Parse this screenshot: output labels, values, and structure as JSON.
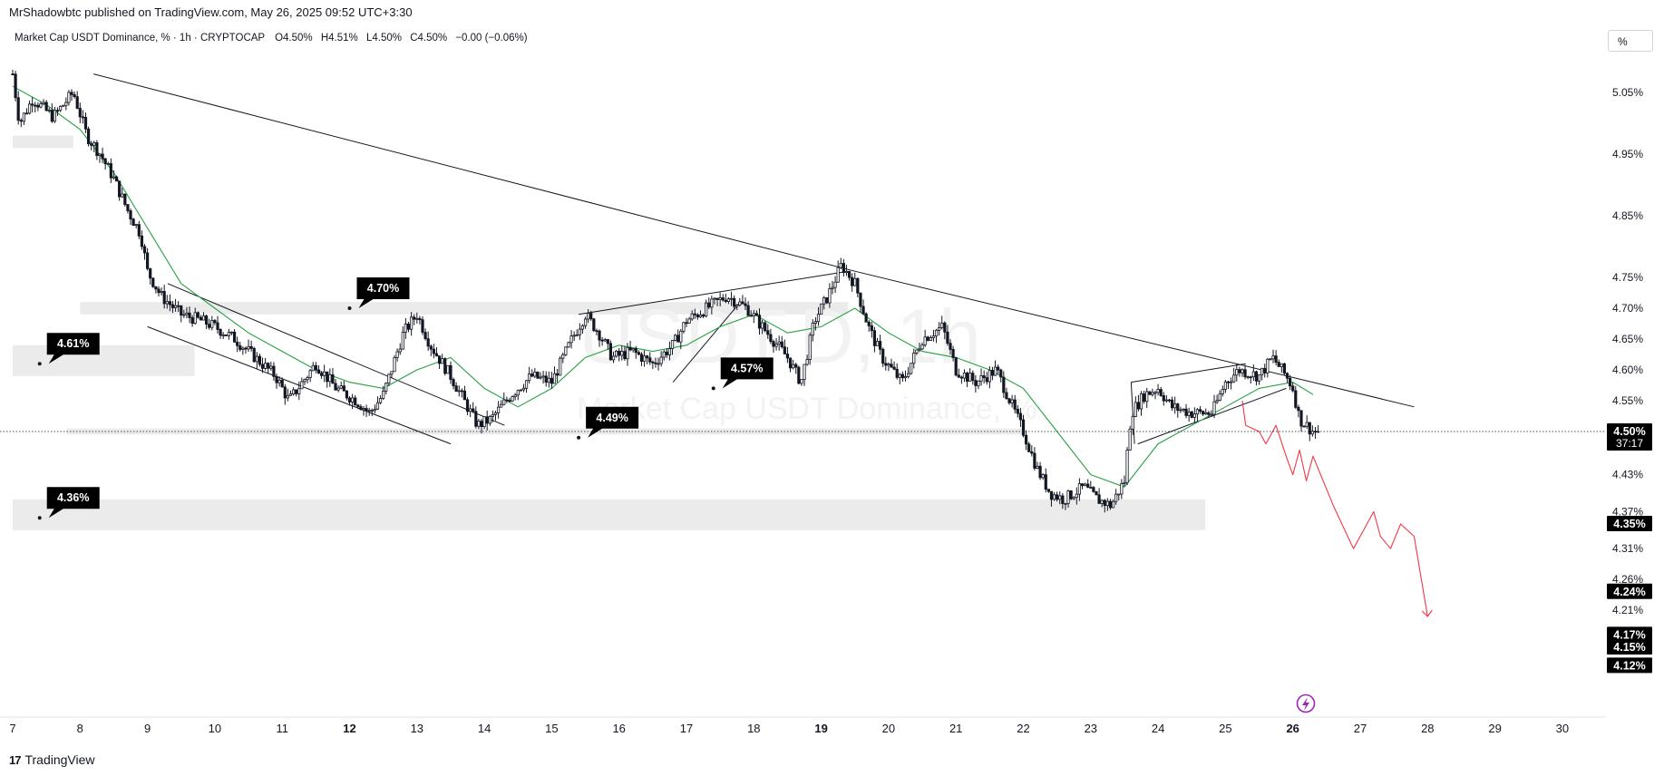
{
  "header": {
    "published": "MrShadowbtc published on TradingView.com, May 26, 2025 09:52 UTC+3:30",
    "symbol_line": "Market Cap USDT Dominance, % · 1h · CRYPTOCAP",
    "ohlc": {
      "o": "O4.50%",
      "h": "H4.51%",
      "l": "L4.50%",
      "c": "C4.50%",
      "chg": "−0.00 (−0.06%)"
    }
  },
  "watermark": {
    "symbol": "USDT.D, 1h",
    "name": "Market Cap USDT Dominance, %"
  },
  "scale_mode": "%",
  "footer": {
    "brand": "TradingView",
    "logo_glyph": "17"
  },
  "colors": {
    "candle": "#131722",
    "ma": "#26a041",
    "projection": "#f23645",
    "label_bg": "#000000",
    "zone": "#ebebeb",
    "lightning": "#9c27b0"
  },
  "chart_data": {
    "type": "line",
    "title": "Market Cap USDT Dominance, %",
    "timeframe": "1h",
    "exchange": "CRYPTOCAP",
    "x_range": [
      7,
      31
    ],
    "ylim": [
      4.115,
      5.08
    ],
    "x_ticks": [
      {
        "x": 7,
        "label": "7"
      },
      {
        "x": 8,
        "label": "8"
      },
      {
        "x": 9,
        "label": "9"
      },
      {
        "x": 10,
        "label": "10"
      },
      {
        "x": 11,
        "label": "11"
      },
      {
        "x": 12,
        "label": "12",
        "bold": true
      },
      {
        "x": 13,
        "label": "13"
      },
      {
        "x": 14,
        "label": "14"
      },
      {
        "x": 15,
        "label": "15"
      },
      {
        "x": 16,
        "label": "16"
      },
      {
        "x": 17,
        "label": "17"
      },
      {
        "x": 18,
        "label": "18"
      },
      {
        "x": 19,
        "label": "19",
        "bold": true
      },
      {
        "x": 20,
        "label": "20"
      },
      {
        "x": 21,
        "label": "21"
      },
      {
        "x": 22,
        "label": "22"
      },
      {
        "x": 23,
        "label": "23"
      },
      {
        "x": 24,
        "label": "24"
      },
      {
        "x": 25,
        "label": "25"
      },
      {
        "x": 26,
        "label": "26",
        "bold": true
      },
      {
        "x": 27,
        "label": "27"
      },
      {
        "x": 28,
        "label": "28"
      },
      {
        "x": 29,
        "label": "29"
      },
      {
        "x": 30,
        "label": "30"
      }
    ],
    "y_ticks": [
      {
        "y": 5.05,
        "label": "5.05%"
      },
      {
        "y": 4.95,
        "label": "4.95%"
      },
      {
        "y": 4.85,
        "label": "4.85%"
      },
      {
        "y": 4.75,
        "label": "4.75%"
      },
      {
        "y": 4.7,
        "label": "4.70%"
      },
      {
        "y": 4.65,
        "label": "4.65%"
      },
      {
        "y": 4.6,
        "label": "4.60%"
      },
      {
        "y": 4.55,
        "label": "4.55%"
      },
      {
        "y": 4.43,
        "label": "4.43%"
      },
      {
        "y": 4.37,
        "label": "4.37%"
      },
      {
        "y": 4.31,
        "label": "4.31%"
      },
      {
        "y": 4.26,
        "label": "4.26%"
      },
      {
        "y": 4.21,
        "label": "4.21%"
      }
    ],
    "price_markers": [
      {
        "y": 4.5,
        "label": "4.50%",
        "sub": "37:17"
      },
      {
        "y": 4.35,
        "label": "4.35%"
      },
      {
        "y": 4.24,
        "label": "4.24%"
      },
      {
        "y": 4.17,
        "label": "4.17%"
      },
      {
        "y": 4.15,
        "label": "4.15%"
      },
      {
        "y": 4.12,
        "label": "4.12%"
      }
    ],
    "last_price": 4.5,
    "price_path": [
      [
        7.0,
        5.08
      ],
      [
        7.1,
        5.0
      ],
      [
        7.3,
        5.04
      ],
      [
        7.6,
        5.01
      ],
      [
        7.9,
        5.05
      ],
      [
        8.1,
        4.98
      ],
      [
        8.3,
        4.95
      ],
      [
        8.5,
        4.91
      ],
      [
        8.7,
        4.86
      ],
      [
        8.9,
        4.82
      ],
      [
        9.0,
        4.76
      ],
      [
        9.2,
        4.72
      ],
      [
        9.5,
        4.69
      ],
      [
        9.8,
        4.68
      ],
      [
        10.0,
        4.67
      ],
      [
        10.3,
        4.65
      ],
      [
        10.6,
        4.62
      ],
      [
        10.9,
        4.59
      ],
      [
        11.1,
        4.55
      ],
      [
        11.3,
        4.58
      ],
      [
        11.5,
        4.61
      ],
      [
        11.8,
        4.57
      ],
      [
        12.1,
        4.55
      ],
      [
        12.3,
        4.53
      ],
      [
        12.5,
        4.56
      ],
      [
        12.8,
        4.66
      ],
      [
        13.0,
        4.69
      ],
      [
        13.2,
        4.64
      ],
      [
        13.5,
        4.59
      ],
      [
        13.7,
        4.55
      ],
      [
        13.9,
        4.51
      ],
      [
        14.1,
        4.52
      ],
      [
        14.4,
        4.56
      ],
      [
        14.7,
        4.59
      ],
      [
        15.0,
        4.58
      ],
      [
        15.3,
        4.65
      ],
      [
        15.5,
        4.69
      ],
      [
        15.7,
        4.66
      ],
      [
        15.9,
        4.62
      ],
      [
        16.2,
        4.63
      ],
      [
        16.5,
        4.61
      ],
      [
        16.8,
        4.64
      ],
      [
        17.0,
        4.68
      ],
      [
        17.3,
        4.7
      ],
      [
        17.6,
        4.72
      ],
      [
        17.9,
        4.7
      ],
      [
        18.2,
        4.66
      ],
      [
        18.5,
        4.62
      ],
      [
        18.7,
        4.58
      ],
      [
        18.9,
        4.68
      ],
      [
        19.1,
        4.72
      ],
      [
        19.3,
        4.77
      ],
      [
        19.5,
        4.74
      ],
      [
        19.7,
        4.67
      ],
      [
        19.9,
        4.62
      ],
      [
        20.2,
        4.58
      ],
      [
        20.5,
        4.65
      ],
      [
        20.8,
        4.67
      ],
      [
        21.0,
        4.6
      ],
      [
        21.3,
        4.58
      ],
      [
        21.6,
        4.6
      ],
      [
        21.8,
        4.55
      ],
      [
        22.0,
        4.5
      ],
      [
        22.2,
        4.44
      ],
      [
        22.4,
        4.4
      ],
      [
        22.6,
        4.39
      ],
      [
        22.9,
        4.41
      ],
      [
        23.1,
        4.39
      ],
      [
        23.3,
        4.38
      ],
      [
        23.5,
        4.42
      ],
      [
        23.6,
        4.53
      ],
      [
        23.8,
        4.56
      ],
      [
        24.0,
        4.57
      ],
      [
        24.2,
        4.54
      ],
      [
        24.5,
        4.53
      ],
      [
        24.8,
        4.53
      ],
      [
        25.0,
        4.58
      ],
      [
        25.2,
        4.6
      ],
      [
        25.5,
        4.59
      ],
      [
        25.7,
        4.62
      ],
      [
        25.9,
        4.59
      ],
      [
        26.0,
        4.57
      ],
      [
        26.1,
        4.52
      ],
      [
        26.3,
        4.5
      ],
      [
        26.4,
        4.5
      ]
    ],
    "ma_path": [
      [
        7.0,
        5.06
      ],
      [
        7.5,
        5.03
      ],
      [
        8.0,
        4.99
      ],
      [
        8.5,
        4.92
      ],
      [
        9.0,
        4.83
      ],
      [
        9.5,
        4.74
      ],
      [
        10.0,
        4.7
      ],
      [
        10.5,
        4.66
      ],
      [
        11.0,
        4.63
      ],
      [
        11.5,
        4.6
      ],
      [
        12.0,
        4.58
      ],
      [
        12.5,
        4.57
      ],
      [
        13.0,
        4.6
      ],
      [
        13.5,
        4.62
      ],
      [
        14.0,
        4.57
      ],
      [
        14.5,
        4.54
      ],
      [
        15.0,
        4.57
      ],
      [
        15.5,
        4.62
      ],
      [
        16.0,
        4.64
      ],
      [
        16.5,
        4.63
      ],
      [
        17.0,
        4.64
      ],
      [
        17.5,
        4.67
      ],
      [
        18.0,
        4.69
      ],
      [
        18.5,
        4.66
      ],
      [
        19.0,
        4.67
      ],
      [
        19.5,
        4.7
      ],
      [
        20.0,
        4.66
      ],
      [
        20.5,
        4.63
      ],
      [
        21.0,
        4.62
      ],
      [
        21.5,
        4.6
      ],
      [
        22.0,
        4.57
      ],
      [
        22.5,
        4.5
      ],
      [
        23.0,
        4.43
      ],
      [
        23.5,
        4.41
      ],
      [
        24.0,
        4.48
      ],
      [
        24.5,
        4.51
      ],
      [
        25.0,
        4.54
      ],
      [
        25.5,
        4.57
      ],
      [
        26.0,
        4.58
      ],
      [
        26.3,
        4.56
      ]
    ],
    "drawings": {
      "main_trendline": [
        [
          8.2,
          5.08
        ],
        [
          19.5,
          4.76
        ],
        [
          27.8,
          4.54
        ]
      ],
      "descending_channel": [
        [
          [
            9.3,
            4.74
          ],
          [
            14.3,
            4.51
          ]
        ],
        [
          [
            9.0,
            4.67
          ],
          [
            13.5,
            4.48
          ]
        ]
      ],
      "rising_wedge": [
        [
          [
            15.4,
            4.69
          ],
          [
            19.4,
            4.76
          ]
        ],
        [
          [
            16.8,
            4.58
          ],
          [
            17.8,
            4.71
          ]
        ]
      ],
      "pennant": [
        [
          [
            23.6,
            4.58
          ],
          [
            25.3,
            4.61
          ]
        ],
        [
          [
            23.7,
            4.48
          ],
          [
            25.9,
            4.57
          ]
        ]
      ],
      "zones": [
        {
          "x": [
            7.0,
            7.9
          ],
          "y": [
            4.96,
            4.98
          ]
        },
        {
          "x": [
            8.0,
            19.4
          ],
          "y": [
            4.69,
            4.71
          ]
        },
        {
          "x": [
            7.0,
            9.7
          ],
          "y": [
            4.59,
            4.64
          ]
        },
        {
          "x": [
            7.8,
            22.0
          ],
          "y": [
            4.495,
            4.505
          ]
        },
        {
          "x": [
            7.0,
            24.7
          ],
          "y": [
            4.34,
            4.39
          ]
        }
      ],
      "callouts": [
        {
          "anchor": [
            12.0,
            4.7
          ],
          "label": "4.70%"
        },
        {
          "anchor": [
            7.4,
            4.61
          ],
          "label": "4.61%"
        },
        {
          "anchor": [
            17.4,
            4.57
          ],
          "label": "4.57%"
        },
        {
          "anchor": [
            15.4,
            4.49
          ],
          "label": "4.49%"
        },
        {
          "anchor": [
            7.4,
            4.36
          ],
          "label": "4.36%"
        }
      ],
      "projection_path": [
        [
          25.25,
          4.55
        ],
        [
          25.3,
          4.51
        ],
        [
          25.5,
          4.5
        ],
        [
          25.6,
          4.48
        ],
        [
          25.75,
          4.51
        ],
        [
          25.9,
          4.46
        ],
        [
          26.0,
          4.43
        ],
        [
          26.1,
          4.47
        ],
        [
          26.2,
          4.42
        ],
        [
          26.3,
          4.46
        ],
        [
          26.45,
          4.42
        ],
        [
          26.6,
          4.38
        ],
        [
          26.9,
          4.31
        ],
        [
          27.1,
          4.35
        ],
        [
          27.2,
          4.37
        ],
        [
          27.3,
          4.33
        ],
        [
          27.45,
          4.31
        ],
        [
          27.6,
          4.35
        ],
        [
          27.8,
          4.33
        ],
        [
          28.0,
          4.2
        ]
      ]
    }
  }
}
